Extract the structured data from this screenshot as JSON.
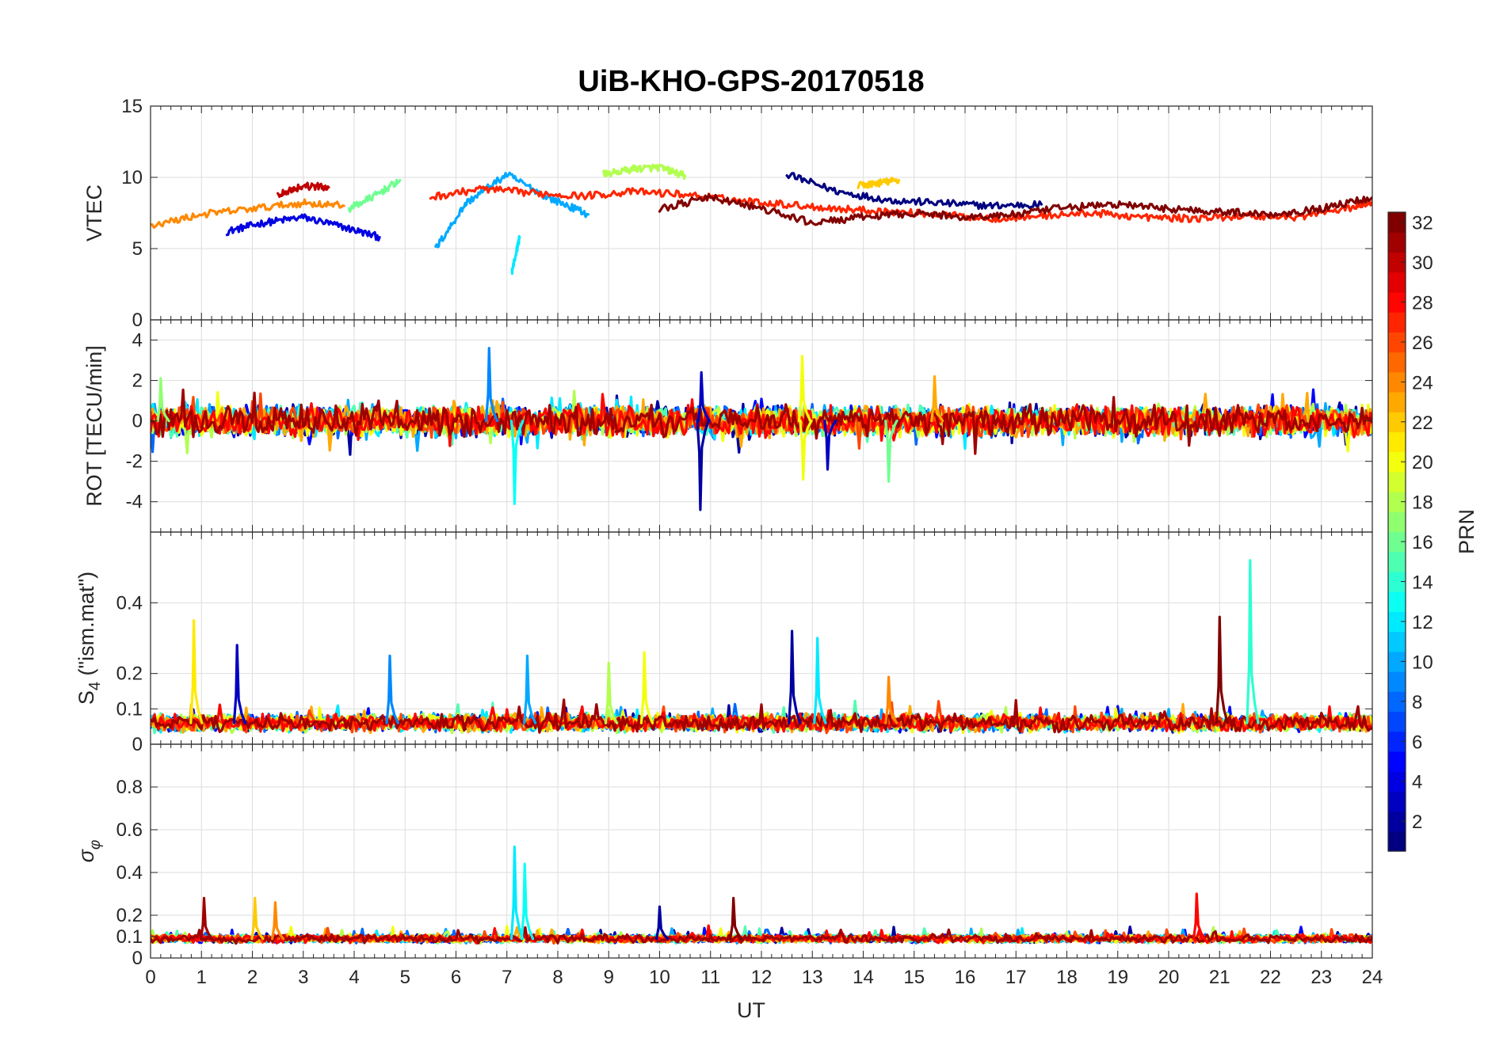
{
  "chart_data": {
    "title": "UiB-KHO-GPS-20170518",
    "type": "line",
    "xlabel": "UT",
    "xlim": [
      0,
      24
    ],
    "xticks": [
      "0",
      "1",
      "2",
      "3",
      "4",
      "5",
      "6",
      "7",
      "8",
      "9",
      "10",
      "11",
      "12",
      "13",
      "14",
      "15",
      "16",
      "17",
      "18",
      "19",
      "20",
      "21",
      "22",
      "23",
      "24"
    ],
    "grid": true,
    "colormap": "jet",
    "colorbar": {
      "label": "PRN",
      "range": [
        1,
        32
      ],
      "ticks": [
        "2",
        "4",
        "6",
        "8",
        "10",
        "12",
        "14",
        "16",
        "18",
        "20",
        "22",
        "24",
        "26",
        "28",
        "30",
        "32"
      ]
    },
    "panels": [
      {
        "ylabel": "VTEC",
        "ylim": [
          0,
          15
        ],
        "yticks": [
          "0",
          "5",
          "10",
          "15"
        ],
        "series": [
          {
            "prn": 4,
            "x": [
              1.5,
              2.2,
              3.0,
              3.8,
              4.5
            ],
            "y": [
              6.2,
              6.8,
              7.2,
              6.5,
              5.8
            ]
          },
          {
            "prn": 1,
            "x": [
              12.5,
              13.5,
              14.5,
              15.5,
              16.5,
              17.5
            ],
            "y": [
              10.2,
              9.0,
              8.4,
              8.2,
              8.0,
              8.1
            ]
          },
          {
            "prn": 10,
            "x": [
              5.6,
              6.2,
              7.0,
              7.8,
              8.6
            ],
            "y": [
              5.0,
              8.2,
              10.2,
              8.6,
              7.4
            ]
          },
          {
            "prn": 12,
            "x": [
              7.1,
              7.25
            ],
            "y": [
              3.4,
              5.8
            ]
          },
          {
            "prn": 16,
            "x": [
              3.9,
              4.4,
              4.9
            ],
            "y": [
              7.8,
              8.7,
              9.8
            ]
          },
          {
            "prn": 18,
            "x": [
              8.9,
              9.5,
              10.0,
              10.5
            ],
            "y": [
              10.2,
              10.6,
              10.7,
              10.1
            ]
          },
          {
            "prn": 22,
            "x": [
              13.9,
              14.3,
              14.7
            ],
            "y": [
              9.4,
              9.6,
              9.8
            ]
          },
          {
            "prn": 24,
            "x": [
              0.0,
              1.0,
              2.0,
              3.0,
              3.8
            ],
            "y": [
              6.6,
              7.4,
              7.8,
              8.2,
              8.0
            ]
          },
          {
            "prn": 27,
            "x": [
              5.5,
              6.5,
              7.5,
              8.5,
              9.5,
              10.5,
              11.5,
              12.5,
              13.5,
              14.5,
              15.5,
              16.5,
              17.5,
              18.5,
              19.5,
              20.5,
              21.5,
              22.5,
              23.5,
              24.0
            ],
            "y": [
              8.6,
              9.2,
              8.9,
              8.7,
              9.0,
              8.8,
              8.4,
              8.1,
              7.8,
              7.6,
              7.4,
              7.1,
              7.3,
              7.5,
              7.2,
              7.1,
              7.3,
              7.2,
              7.8,
              8.3
            ]
          },
          {
            "prn": 30,
            "x": [
              2.5,
              3.0,
              3.5
            ],
            "y": [
              8.8,
              9.4,
              9.3
            ]
          },
          {
            "prn": 32,
            "x": [
              10.0,
              11.0,
              12.0,
              13.0,
              14.0,
              15.0,
              16.0,
              17.0,
              18.0,
              19.0,
              20.0,
              21.0,
              22.0,
              23.0,
              24.0
            ],
            "y": [
              7.8,
              8.6,
              7.8,
              6.8,
              7.2,
              7.5,
              7.2,
              7.4,
              7.9,
              8.1,
              7.8,
              7.6,
              7.4,
              7.8,
              8.6
            ]
          }
        ]
      },
      {
        "ylabel": "ROT [TECU/min]",
        "ylim": [
          -5.5,
          5
        ],
        "yticks": [
          "-4",
          "-2",
          "0",
          "2",
          "4"
        ],
        "spikes": [
          {
            "prn": 9,
            "x": 6.65,
            "y": 3.6
          },
          {
            "prn": 13,
            "x": 7.15,
            "y": -4.1
          },
          {
            "prn": 2,
            "x": 10.8,
            "y": -4.4
          },
          {
            "prn": 3,
            "x": 10.82,
            "y": 2.4
          },
          {
            "prn": 20,
            "x": 12.8,
            "y": 3.2
          },
          {
            "prn": 20,
            "x": 12.82,
            "y": -2.9
          },
          {
            "prn": 3,
            "x": 13.3,
            "y": -2.4
          },
          {
            "prn": 16,
            "x": 14.5,
            "y": -3.0
          },
          {
            "prn": 23,
            "x": 15.4,
            "y": 2.2
          },
          {
            "prn": 17,
            "x": 0.2,
            "y": 2.1
          }
        ]
      },
      {
        "ylabel": "S4 (\"ism.mat\")",
        "ylim": [
          0,
          0.6
        ],
        "yticks": [
          "0",
          "0.1",
          "0.2",
          "0.4"
        ],
        "spikes": [
          {
            "prn": 21,
            "x": 0.85,
            "y": 0.35
          },
          {
            "prn": 3,
            "x": 1.7,
            "y": 0.28
          },
          {
            "prn": 9,
            "x": 4.7,
            "y": 0.25
          },
          {
            "prn": 10,
            "x": 7.4,
            "y": 0.25
          },
          {
            "prn": 18,
            "x": 9.0,
            "y": 0.23
          },
          {
            "prn": 20,
            "x": 9.7,
            "y": 0.26
          },
          {
            "prn": 2,
            "x": 12.6,
            "y": 0.32
          },
          {
            "prn": 12,
            "x": 13.1,
            "y": 0.3
          },
          {
            "prn": 24,
            "x": 14.5,
            "y": 0.19
          },
          {
            "prn": 32,
            "x": 21.0,
            "y": 0.36
          },
          {
            "prn": 14,
            "x": 21.6,
            "y": 0.52
          }
        ]
      },
      {
        "ylabel": "σφ",
        "ylim": [
          0,
          1
        ],
        "yticks": [
          "0",
          "0.1",
          "0.2",
          "0.4",
          "0.6",
          "0.8"
        ],
        "spikes": [
          {
            "prn": 31,
            "x": 1.05,
            "y": 0.28
          },
          {
            "prn": 22,
            "x": 2.05,
            "y": 0.28
          },
          {
            "prn": 24,
            "x": 2.45,
            "y": 0.26
          },
          {
            "prn": 12,
            "x": 7.15,
            "y": 0.52
          },
          {
            "prn": 13,
            "x": 7.35,
            "y": 0.44
          },
          {
            "prn": 2,
            "x": 10.0,
            "y": 0.24
          },
          {
            "prn": 32,
            "x": 11.45,
            "y": 0.28
          },
          {
            "prn": 28,
            "x": 20.55,
            "y": 0.3
          }
        ]
      }
    ]
  }
}
